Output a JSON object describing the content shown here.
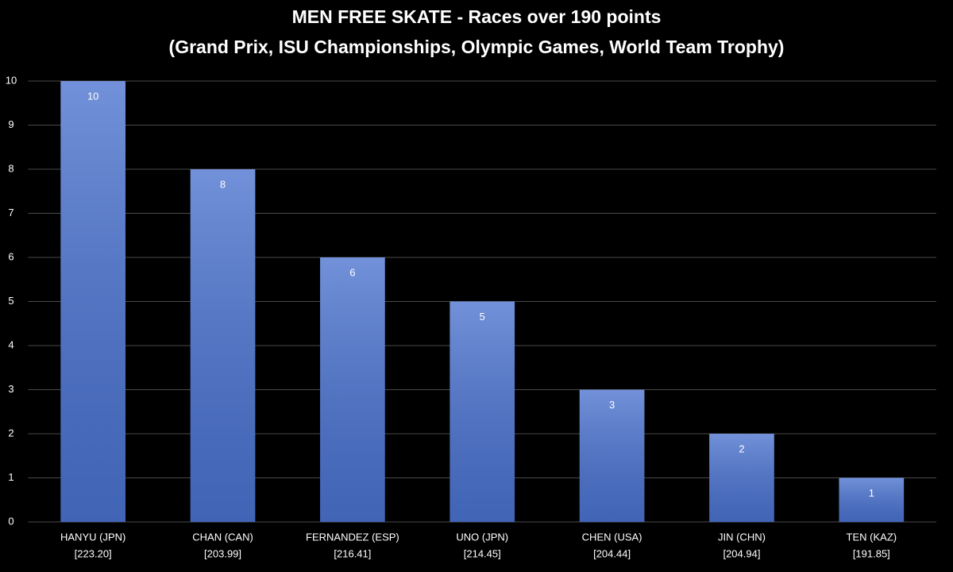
{
  "chart_data": {
    "type": "bar",
    "title": "MEN FREE SKATE - Races over 190 points",
    "subtitle": "(Grand Prix, ISU Championships, Olympic Games, World Team Trophy)",
    "categories": [
      "HANYU (JPN)",
      "CHAN (CAN)",
      "FERNANDEZ (ESP)",
      "UNO (JPN)",
      "CHEN (USA)",
      "JIN (CHN)",
      "TEN (KAZ)"
    ],
    "category_scores": [
      "[223.20]",
      "[203.99]",
      "[216.41]",
      "[214.45]",
      "[204.44]",
      "[204.94]",
      "[191.85]"
    ],
    "values": [
      10,
      8,
      6,
      5,
      3,
      2,
      1
    ],
    "color": "#4a72cf",
    "ylim": [
      0,
      10
    ],
    "yticks": [
      0,
      1,
      2,
      3,
      4,
      5,
      6,
      7,
      8,
      9,
      10
    ],
    "grid": true
  }
}
